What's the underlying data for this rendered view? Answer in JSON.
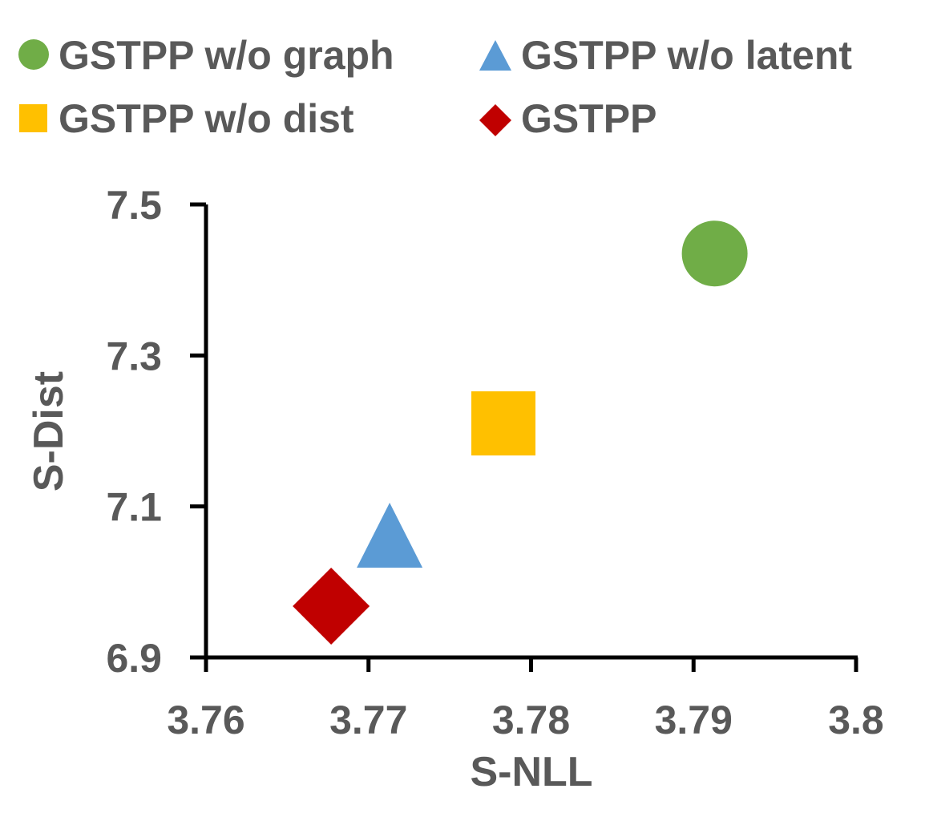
{
  "chart_data": {
    "type": "scatter",
    "xlabel": "S-NLL",
    "ylabel": "S-Dist",
    "xlim": [
      3.76,
      3.8
    ],
    "ylim": [
      6.9,
      7.5
    ],
    "xticks": [
      "3.76",
      "3.77",
      "3.78",
      "3.79",
      "3.8"
    ],
    "yticks": [
      "6.9",
      "7.1",
      "7.3",
      "7.5"
    ],
    "grid": false,
    "legend_position": "top",
    "series": [
      {
        "name": "GSTPP w/o graph",
        "marker": "circle",
        "color": "#70ad47",
        "x": 3.7913,
        "y": 7.435
      },
      {
        "name": "GSTPP w/o latent",
        "marker": "triangle",
        "color": "#5b9bd5",
        "x": 3.7713,
        "y": 7.055
      },
      {
        "name": "GSTPP w/o dist",
        "marker": "square",
        "color": "#ffc000",
        "x": 3.7783,
        "y": 7.21
      },
      {
        "name": "GSTPP",
        "marker": "diamond",
        "color": "#c00000",
        "x": 3.7677,
        "y": 6.968
      }
    ]
  }
}
